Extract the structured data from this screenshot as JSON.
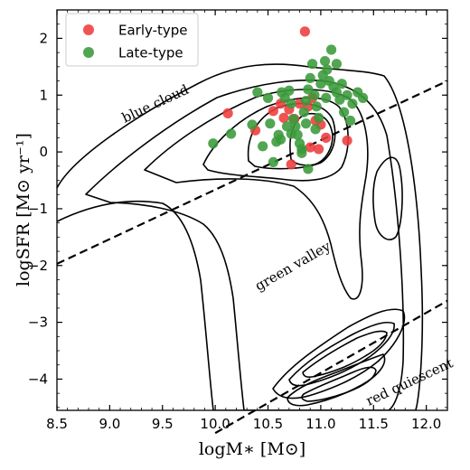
{
  "chart_data": {
    "type": "scatter",
    "xlabel": "logM∗ [M⊙]",
    "ylabel": "logSFR [M⊙ yr⁻¹]",
    "xlim": [
      8.5,
      12.2
    ],
    "ylim": [
      -4.55,
      2.5
    ],
    "xticks": [
      8.5,
      9.0,
      9.5,
      10.0,
      10.5,
      11.0,
      11.5,
      12.0
    ],
    "xtick_labels": [
      "8.5",
      "9.0",
      "9.5",
      "10.0",
      "10.5",
      "11.0",
      "11.5",
      "12.0"
    ],
    "yticks": [
      2,
      1,
      0,
      -1,
      -2,
      -3,
      -4
    ],
    "ytick_labels": [
      "2",
      "1",
      "0",
      "−1",
      "−2",
      "−3",
      "−4"
    ],
    "legend_position": "top-left",
    "series": [
      {
        "name": "Early-type",
        "color": "#ee3b3b",
        "points": [
          [
            10.12,
            0.68
          ],
          [
            10.38,
            0.38
          ],
          [
            10.55,
            0.72
          ],
          [
            10.62,
            0.85
          ],
          [
            10.7,
            0.75
          ],
          [
            10.75,
            0.58
          ],
          [
            10.8,
            0.85
          ],
          [
            10.88,
            0.8
          ],
          [
            10.92,
            0.95
          ],
          [
            10.95,
            0.55
          ],
          [
            10.85,
            2.12
          ],
          [
            11.0,
            0.48
          ],
          [
            11.05,
            0.25
          ],
          [
            10.98,
            0.05
          ],
          [
            10.9,
            0.08
          ],
          [
            10.72,
            -0.22
          ],
          [
            11.25,
            0.2
          ],
          [
            10.65,
            0.6
          ]
        ]
      },
      {
        "name": "Late-type",
        "color": "#3a9a3a",
        "points": [
          [
            9.98,
            0.15
          ],
          [
            10.15,
            0.32
          ],
          [
            10.35,
            0.48
          ],
          [
            10.45,
            0.1
          ],
          [
            10.52,
            0.5
          ],
          [
            10.55,
            -0.18
          ],
          [
            10.6,
            0.3
          ],
          [
            10.63,
            1.05
          ],
          [
            10.66,
            0.95
          ],
          [
            10.7,
            1.08
          ],
          [
            10.72,
            0.85
          ],
          [
            10.74,
            0.58
          ],
          [
            10.76,
            0.45
          ],
          [
            10.78,
            0.3
          ],
          [
            10.8,
            0.15
          ],
          [
            10.82,
            0.05
          ],
          [
            10.84,
            0.7
          ],
          [
            10.86,
            0.9
          ],
          [
            10.88,
            1.1
          ],
          [
            10.9,
            1.3
          ],
          [
            10.92,
            1.55
          ],
          [
            10.94,
            1.0
          ],
          [
            10.96,
            0.8
          ],
          [
            10.98,
            0.6
          ],
          [
            11.0,
            1.2
          ],
          [
            11.02,
            1.35
          ],
          [
            11.04,
            1.6
          ],
          [
            11.06,
            1.45
          ],
          [
            11.08,
            1.25
          ],
          [
            11.1,
            1.8
          ],
          [
            11.12,
            1.15
          ],
          [
            11.15,
            1.05
          ],
          [
            11.18,
            0.92
          ],
          [
            11.2,
            1.2
          ],
          [
            11.25,
            1.0
          ],
          [
            11.28,
            0.55
          ],
          [
            11.35,
            1.05
          ],
          [
            11.4,
            0.95
          ],
          [
            10.58,
            0.18
          ],
          [
            10.68,
            0.45
          ],
          [
            10.82,
            -0.02
          ],
          [
            10.88,
            -0.3
          ],
          [
            10.5,
            0.95
          ],
          [
            10.4,
            1.05
          ],
          [
            11.05,
            0.95
          ],
          [
            10.95,
            0.4
          ],
          [
            10.72,
            0.32
          ],
          [
            10.62,
            0.22
          ],
          [
            11.15,
            1.55
          ],
          [
            11.3,
            0.85
          ],
          [
            11.22,
            0.7
          ],
          [
            10.86,
            0.5
          ]
        ]
      }
    ],
    "dividing_lines": [
      {
        "x": [
          8.5,
          12.2
        ],
        "y": [
          -1.97,
          1.25
        ]
      },
      {
        "x": [
          10.0,
          12.2
        ],
        "y": [
          -4.95,
          -2.62
        ]
      }
    ],
    "annotations": [
      "blue cloud",
      "green valley",
      "red quiescent"
    ]
  }
}
